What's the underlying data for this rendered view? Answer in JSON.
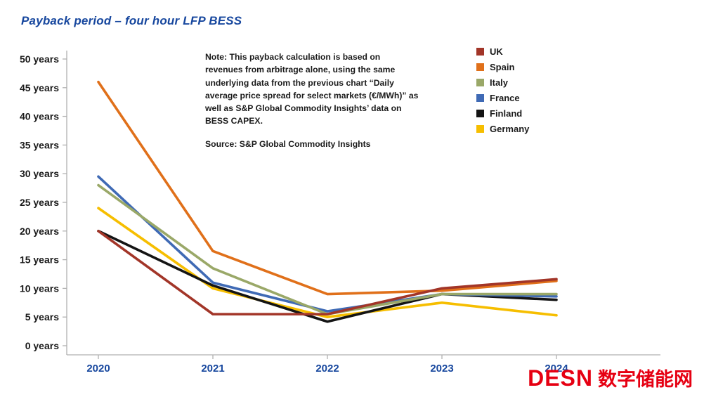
{
  "page": {
    "title": "Payback period – four hour LFP BESS"
  },
  "note": {
    "text": "Note: This payback calculation is based on revenues from arbitrage alone, using the same underlying data from the previous chart “Daily average price spread for select markets (€/MWh)” as well as S&P Global Commodity Insights’ data on BESS CAPEX.",
    "source": "Source: S&P Global Commodity Insights"
  },
  "watermark": {
    "logo": "DESN",
    "text": "数字储能网"
  },
  "chart_data": {
    "type": "line",
    "title": "Payback period – four hour LFP BESS",
    "xlabel": "",
    "ylabel": "",
    "categories": [
      "2020",
      "2021",
      "2022",
      "2023",
      "2024"
    ],
    "ylim": [
      0,
      50
    ],
    "ytick_step": 5,
    "ytick_suffix": " years",
    "grid": false,
    "legend_position": "top-right",
    "axis_color": "#b0b0b0",
    "series": [
      {
        "name": "UK",
        "color": "#A23528",
        "values": [
          20.0,
          5.5,
          5.5,
          10.0,
          11.6
        ]
      },
      {
        "name": "Spain",
        "color": "#E0701A",
        "values": [
          46.0,
          16.5,
          9.0,
          9.6,
          11.3
        ]
      },
      {
        "name": "Italy",
        "color": "#9AA868",
        "values": [
          28.0,
          13.5,
          5.5,
          9.0,
          9.0
        ]
      },
      {
        "name": "France",
        "color": "#3F6AB5",
        "values": [
          29.5,
          11.0,
          6.0,
          9.0,
          8.6
        ]
      },
      {
        "name": "Finland",
        "color": "#141414",
        "values": [
          20.0,
          10.5,
          4.2,
          9.0,
          8.0
        ]
      },
      {
        "name": "Germany",
        "color": "#F6BE00",
        "values": [
          24.0,
          10.0,
          5.0,
          7.5,
          5.3
        ]
      }
    ]
  }
}
